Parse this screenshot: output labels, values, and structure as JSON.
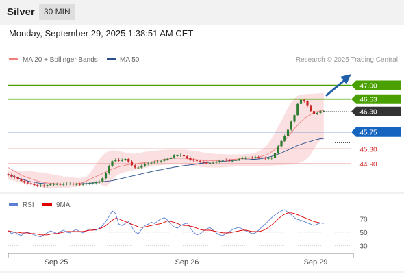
{
  "header": {
    "instrument": "Silver",
    "timeframe": "30 MIN",
    "datetime": "Monday, September 29, 2025 1:38:51 AM CET"
  },
  "colors": {
    "price_up": "#2e7d32",
    "price_down": "#c62828",
    "target": "#4aa000",
    "pivot": "#1565c0",
    "support": "#e57373",
    "ma20": "#f08080",
    "ma50": "#2b4f8a",
    "band_fill": "#fadadd",
    "rsi": "#5b7fd6",
    "rsi_ma": "#e00000",
    "arrow": "#1f5fa8"
  },
  "chart_data": [
    {
      "type": "candlestick",
      "instrument": "Silver",
      "timeframe": "30 MIN",
      "ylim": [
        44.15,
        47.45
      ],
      "x_tick_labels": [
        "Sep 25",
        "Sep 26",
        "Sep 29"
      ],
      "legend": [
        "MA 20 + Bollinger Bands",
        "MA 50"
      ],
      "credit": "Research © 2025 Trading Central",
      "levels": [
        {
          "value": 47.0,
          "label": "47.00",
          "kind": "target"
        },
        {
          "value": 46.63,
          "label": "46.63",
          "kind": "target"
        },
        {
          "value": 45.75,
          "label": "45.75",
          "kind": "pivot"
        },
        {
          "value": 45.3,
          "label": "45.30",
          "kind": "support"
        },
        {
          "value": 44.9,
          "label": "44.90",
          "kind": "support"
        }
      ],
      "last_price": {
        "value": 46.3,
        "label": "46.30"
      },
      "closes": [
        44.6,
        44.56,
        44.54,
        44.49,
        44.44,
        44.4,
        44.38,
        44.36,
        44.33,
        44.31,
        44.32,
        44.3,
        44.33,
        44.35,
        44.36,
        44.36,
        44.35,
        44.36,
        44.37,
        44.37,
        44.35,
        44.36,
        44.34,
        44.36,
        44.37,
        44.38,
        44.38,
        44.4,
        44.43,
        44.51,
        44.65,
        44.84,
        44.97,
        45.01,
        44.98,
        45.01,
        45.03,
        44.96,
        44.86,
        44.8,
        44.8,
        44.85,
        44.89,
        44.91,
        44.93,
        44.95,
        44.96,
        44.98,
        45.02,
        45.03,
        45.07,
        45.12,
        45.12,
        45.14,
        45.1,
        45.06,
        45.01,
        44.99,
        44.98,
        44.96,
        44.93,
        44.92,
        44.92,
        44.93,
        44.95,
        44.98,
        45.01,
        45,
        44.97,
        44.98,
        45.01,
        45.03,
        45.06,
        45.06,
        45.07,
        45.06,
        45.08,
        45.07,
        45.06,
        45.04,
        45.05,
        45.06,
        45.18,
        45.37,
        45.51,
        45.65,
        45.81,
        46.03,
        46.2,
        46.5,
        46.61,
        46.57,
        46.45,
        46.31,
        46.24,
        46.26,
        46.31,
        46.31
      ],
      "ma20": [
        44.8,
        44.75,
        44.7,
        44.65,
        44.6,
        44.56,
        44.53,
        44.5,
        44.47,
        44.44,
        44.42,
        44.4,
        44.39,
        44.38,
        44.37,
        44.37,
        44.36,
        44.36,
        44.36,
        44.36,
        44.36,
        44.37,
        44.38,
        44.4,
        44.44,
        44.48,
        44.52,
        44.56,
        44.6,
        44.64,
        44.68,
        44.72,
        44.76,
        44.79,
        44.82,
        44.84,
        44.86,
        44.88,
        44.89,
        44.9,
        44.91,
        44.92,
        44.93,
        44.94,
        44.95,
        44.97,
        44.99,
        45,
        45.02,
        45.03,
        45.04,
        45.05,
        45.05,
        45.05,
        45.05,
        45.04,
        45.03,
        45.02,
        45.01,
        45,
        44.99,
        44.98,
        44.98,
        44.98,
        44.98,
        44.99,
        45,
        45,
        45.01,
        45.02,
        45.02,
        45.03,
        45.04,
        45.04,
        45.05,
        45.05,
        45.06,
        45.08,
        45.1,
        45.13,
        45.17,
        45.22,
        45.28,
        45.35,
        45.43,
        45.52,
        45.62,
        45.73,
        45.84,
        45.94,
        46.03,
        46.11,
        46.17,
        46.22,
        46.26,
        46.3,
        46.32,
        46.33
      ],
      "bb_upper": [
        44.73,
        44.73,
        44.72,
        44.72,
        44.71,
        44.71,
        44.7,
        44.7,
        44.69,
        44.68,
        44.67,
        44.66,
        44.64,
        44.63,
        44.61,
        44.59,
        44.58,
        44.56,
        44.55,
        44.54,
        44.53,
        44.52,
        44.52,
        44.53,
        44.56,
        44.64,
        44.76,
        44.9,
        45.02,
        45.12,
        45.2,
        45.24,
        45.26,
        45.26,
        45.24,
        45.22,
        45.2,
        45.18,
        45.17,
        45.17,
        45.19,
        45.2,
        45.22,
        45.23,
        45.25,
        45.25,
        45.26,
        45.27,
        45.27,
        45.28,
        45.28,
        45.28,
        45.28,
        45.28,
        45.28,
        45.27,
        45.26,
        45.25,
        45.23,
        45.22,
        45.2,
        45.19,
        45.18,
        45.17,
        45.16,
        45.16,
        45.16,
        45.15,
        45.15,
        45.15,
        45.15,
        45.15,
        45.15,
        45.16,
        45.16,
        45.18,
        45.2,
        45.23,
        45.28,
        45.35,
        45.45,
        45.58,
        45.73,
        45.9,
        46.06,
        46.23,
        46.4,
        46.54,
        46.65,
        46.72,
        46.75,
        46.76,
        46.77,
        46.77,
        46.78,
        46.78,
        46.79,
        46.79
      ],
      "bb_lower": [
        44.47,
        44.45,
        44.44,
        44.42,
        44.4,
        44.38,
        44.36,
        44.34,
        44.32,
        44.3,
        44.28,
        44.27,
        44.26,
        44.25,
        44.25,
        44.25,
        44.25,
        44.26,
        44.26,
        44.27,
        44.28,
        44.28,
        44.3,
        44.32,
        44.35,
        44.37,
        44.38,
        44.38,
        44.36,
        44.32,
        44.28,
        44.36,
        44.48,
        44.56,
        44.62,
        44.66,
        44.68,
        44.7,
        44.72,
        44.74,
        44.75,
        44.77,
        44.79,
        44.81,
        44.82,
        44.84,
        44.85,
        44.86,
        44.87,
        44.88,
        44.88,
        44.89,
        44.88,
        44.88,
        44.87,
        44.86,
        44.85,
        44.84,
        44.83,
        44.82,
        44.81,
        44.8,
        44.8,
        44.8,
        44.8,
        44.8,
        44.81,
        44.81,
        44.82,
        44.82,
        44.83,
        44.83,
        44.84,
        44.84,
        44.84,
        44.84,
        44.84,
        44.84,
        44.84,
        44.84,
        44.84,
        44.85,
        44.85,
        44.86,
        44.86,
        44.87,
        44.87,
        44.88,
        44.89,
        44.91,
        44.94,
        44.98,
        45.05,
        45.15,
        45.29,
        45.44,
        45.53,
        45.55
      ],
      "ma50": [
        44.62,
        44.59,
        44.55,
        44.52,
        44.49,
        44.47,
        44.44,
        44.42,
        44.41,
        44.39,
        44.38,
        44.37,
        44.36,
        44.36,
        44.36,
        44.36,
        44.36,
        44.36,
        44.36,
        44.36,
        44.36,
        44.36,
        44.36,
        44.37,
        44.37,
        44.38,
        44.39,
        44.4,
        44.41,
        44.42,
        44.43,
        44.44,
        44.45,
        44.47,
        44.49,
        44.51,
        44.53,
        44.55,
        44.57,
        44.59,
        44.61,
        44.63,
        44.65,
        44.67,
        44.69,
        44.71,
        44.73,
        44.74,
        44.76,
        44.78,
        44.79,
        44.81,
        44.82,
        44.84,
        44.85,
        44.86,
        44.87,
        44.88,
        44.89,
        44.91,
        44.92,
        44.93,
        44.94,
        44.95,
        44.95,
        44.96,
        44.97,
        44.97,
        44.98,
        44.99,
        44.99,
        45,
        45,
        45.01,
        45.01,
        45.02,
        45.02,
        45.03,
        45.04,
        45.06,
        45.08,
        45.1,
        45.13,
        45.16,
        45.19,
        45.23,
        45.27,
        45.31,
        45.35,
        45.39,
        45.42,
        45.45,
        45.48,
        45.5,
        45.53,
        45.55,
        45.57,
        45.58
      ]
    },
    {
      "type": "line",
      "legend": [
        "RSI",
        "9MA"
      ],
      "ylim": [
        20,
        85
      ],
      "y_ticks": [
        70,
        50,
        30
      ],
      "rsi": [
        52,
        48,
        50,
        47,
        45,
        49,
        50,
        48,
        46,
        44,
        43,
        46,
        49,
        52,
        50,
        48,
        51,
        53,
        50,
        49,
        52,
        54,
        51,
        49,
        52,
        55,
        54,
        53,
        56,
        60,
        66,
        74,
        82,
        78,
        62,
        60,
        63,
        66,
        58,
        50,
        48,
        54,
        60,
        62,
        65,
        63,
        67,
        70,
        72,
        68,
        62,
        58,
        56,
        60,
        62,
        64,
        56,
        50,
        46,
        48,
        52,
        55,
        57,
        53,
        49,
        46,
        45,
        48,
        51,
        54,
        56,
        57,
        55,
        52,
        50,
        48,
        49,
        53,
        58,
        62,
        67,
        72,
        76,
        79,
        82,
        84,
        80,
        76,
        72,
        69,
        68,
        66,
        64,
        62,
        60,
        62,
        64,
        63
      ],
      "rsi_ma": [
        52,
        51,
        50,
        50,
        49,
        49,
        49,
        48,
        48,
        47,
        46,
        46,
        46,
        47,
        48,
        48,
        49,
        50,
        51,
        51,
        51,
        51,
        51,
        51,
        52,
        53,
        53,
        54,
        55,
        57,
        60,
        64,
        68,
        71,
        70,
        68,
        66,
        64,
        62,
        60,
        58,
        57,
        58,
        59,
        60,
        61,
        62,
        63,
        65,
        67,
        66,
        65,
        63,
        61,
        60,
        60,
        59,
        58,
        56,
        54,
        53,
        53,
        53,
        52,
        51,
        50,
        49,
        49,
        49,
        50,
        51,
        52,
        53,
        53,
        52,
        51,
        51,
        51,
        52,
        54,
        57,
        61,
        65,
        70,
        74,
        77,
        79,
        79,
        78,
        76,
        74,
        72,
        70,
        68,
        66,
        65,
        64,
        64
      ],
      "legend_colors": [
        "#5b7fd6",
        "#e00000"
      ]
    }
  ]
}
